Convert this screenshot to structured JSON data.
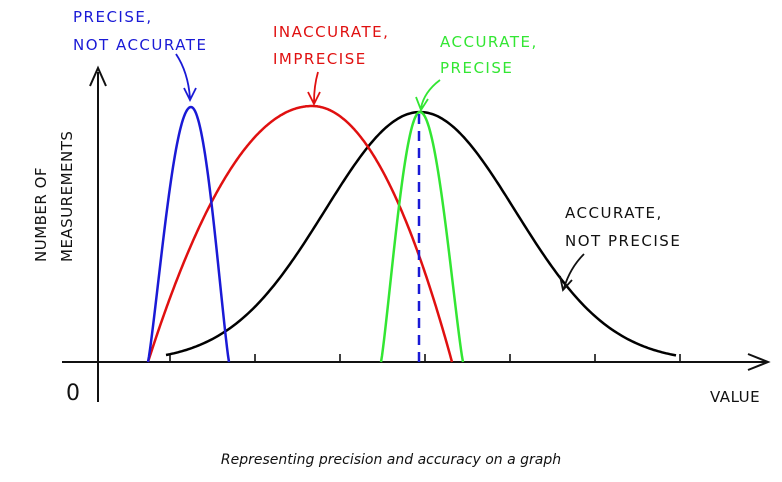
{
  "axes": {
    "y_label_line1": "NUMBER OF",
    "y_label_line2": "MEASUREMENTS",
    "x_label": "VALUE",
    "origin_label": "0"
  },
  "curves": [
    {
      "key": "blue",
      "label_line1": "PRECISE,",
      "label_line2": "NOT ACCURATE",
      "color": "#1a1ad6"
    },
    {
      "key": "red",
      "label_line1": "INACCURATE,",
      "label_line2": "IMPRECISE",
      "color": "#e01010"
    },
    {
      "key": "green",
      "label_line1": "ACCURATE,",
      "label_line2": "PRECISE",
      "color": "#33e633"
    },
    {
      "key": "black",
      "label_line1": "ACCURATE,",
      "label_line2": "NOT PRECISE",
      "color": "#000000"
    }
  ],
  "true_value_line_color": "#1a1ad6",
  "caption": "Representing precision and accuracy on a graph"
}
